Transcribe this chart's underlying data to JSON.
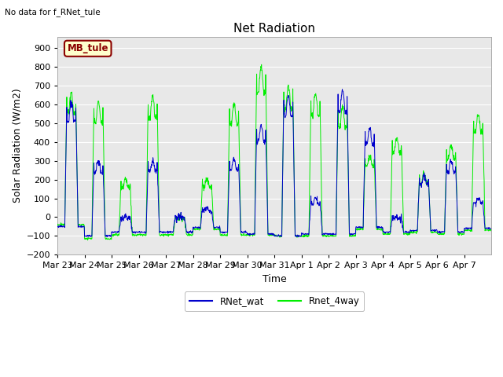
{
  "title": "Net Radiation",
  "top_left_text": "No data for f_RNet_tule",
  "ylabel": "Solar Radiation (W/m2)",
  "xlabel": "Time",
  "ylim": [
    -200,
    960
  ],
  "yticks": [
    -200,
    -100,
    0,
    100,
    200,
    300,
    400,
    500,
    600,
    700,
    800,
    900
  ],
  "legend_box_label": "MB_tule",
  "legend_box_facecolor": "#ffffcc",
  "legend_box_edgecolor": "#8b0000",
  "line1_label": "RNet_wat",
  "line1_color": "#0000cc",
  "line2_label": "Rnet_4way",
  "line2_color": "#00ee00",
  "plot_bgcolor": "#e8e8e8",
  "grid_color": "#ffffff",
  "title_fontsize": 11,
  "axis_label_fontsize": 9,
  "tick_fontsize": 8,
  "n_days": 16,
  "n_points_per_day": 96,
  "peak_heights_blue": [
    610,
    300,
    5,
    300,
    5,
    50,
    310,
    490,
    650,
    100,
    675,
    470,
    5,
    220,
    295,
    100
  ],
  "peak_heights_green": [
    660,
    610,
    200,
    635,
    5,
    200,
    600,
    800,
    700,
    660,
    590,
    330,
    420,
    230,
    380,
    550
  ],
  "night_blue": [
    -50,
    -100,
    -80,
    -80,
    -80,
    -55,
    -80,
    -90,
    -100,
    -90,
    -90,
    -55,
    -80,
    -70,
    -80,
    -60
  ],
  "night_green": [
    -40,
    -115,
    -95,
    -95,
    -95,
    -65,
    -95,
    -95,
    -100,
    -100,
    -100,
    -65,
    -90,
    -80,
    -90,
    -70
  ],
  "figwidth": 6.4,
  "figheight": 4.8,
  "dpi": 100
}
